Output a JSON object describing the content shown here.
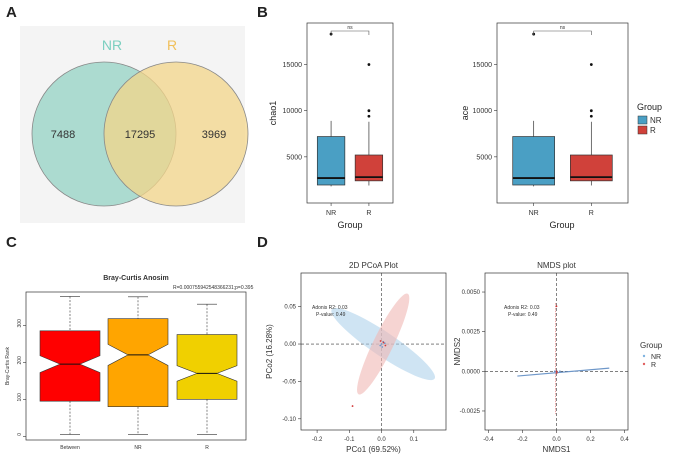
{
  "panels": {
    "a": "A",
    "b": "B",
    "c": "C",
    "d": "D"
  },
  "colors": {
    "nr_venn": "#9fd6c9",
    "r_venn": "#f3d58a",
    "overlap": "#d6d59b",
    "nr_box": "#4a9fc4",
    "r_box": "#d0413a",
    "anosim_between": "#ff0000",
    "anosim_nr": "#ffa500",
    "anosim_r": "#f0d000",
    "nr_ellipse": "#a8cdea",
    "r_ellipse": "#f0b8b4"
  },
  "chart_data": [
    {
      "id": "venn",
      "type": "venn",
      "sets": [
        "NR",
        "R"
      ],
      "values": {
        "NR_only": 7488,
        "both": 17295,
        "R_only": 3969
      }
    },
    {
      "id": "chao1",
      "type": "boxplot",
      "ylabel": "chao1",
      "xlabel": "Group",
      "categories": [
        "NR",
        "R"
      ],
      "ylim": [
        0,
        19500
      ],
      "yticks": [
        5000,
        10000,
        15000
      ],
      "significance": "ns",
      "boxes": [
        {
          "group": "NR",
          "min": 1800,
          "q1": 1950,
          "median": 2700,
          "q3": 7200,
          "max": 8900,
          "outliers": [
            18300
          ]
        },
        {
          "group": "R",
          "min": 1900,
          "q1": 2400,
          "median": 2800,
          "q3": 5200,
          "max": 8800,
          "outliers": [
            9400,
            10000,
            15000
          ]
        }
      ]
    },
    {
      "id": "ace",
      "type": "boxplot",
      "ylabel": "ace",
      "xlabel": "Group",
      "categories": [
        "NR",
        "R"
      ],
      "ylim": [
        0,
        19500
      ],
      "yticks": [
        5000,
        10000,
        15000
      ],
      "significance": "ns",
      "boxes": [
        {
          "group": "NR",
          "min": 1800,
          "q1": 1950,
          "median": 2700,
          "q3": 7200,
          "max": 8900,
          "outliers": [
            18300
          ]
        },
        {
          "group": "R",
          "min": 1900,
          "q1": 2400,
          "median": 2800,
          "q3": 5200,
          "max": 8800,
          "outliers": [
            9400,
            10000,
            15000
          ]
        }
      ]
    },
    {
      "id": "anosim",
      "type": "boxplot",
      "title": "Bray-Curtis Anosim",
      "subtitle": "R=0.000755942548366231;p=0.395",
      "ylabel": "Bray-Curtis Rank",
      "xlabel": "",
      "categories": [
        "Between",
        "NR",
        "R"
      ],
      "ylim": [
        -10,
        390
      ],
      "yticks": [
        0,
        100,
        200,
        300
      ],
      "boxes": [
        {
          "group": "Between",
          "min": 5,
          "q1": 95,
          "median": 195,
          "q3": 285,
          "max": 378
        },
        {
          "group": "NR",
          "min": 5,
          "q1": 80,
          "median": 220,
          "q3": 318,
          "max": 377
        },
        {
          "group": "R",
          "min": 5,
          "q1": 100,
          "median": 170,
          "q3": 275,
          "max": 357
        }
      ]
    },
    {
      "id": "pcoa",
      "type": "scatter",
      "title": "2D PCoA Plot",
      "xlabel": "PCo1 (69.52%)",
      "ylabel": "PCo2 (16.28%)",
      "xlim": [
        -0.25,
        0.2
      ],
      "ylim": [
        -0.115,
        0.095
      ],
      "xticks": [
        -0.2,
        -0.1,
        0.0,
        0.1
      ],
      "yticks": [
        -0.1,
        -0.05,
        0.0,
        0.05
      ],
      "annotation": [
        "Adonis R2: 0.03",
        "P-value: 0.49"
      ],
      "series": [
        {
          "name": "NR",
          "points": [
            [
              0.0,
              0.0
            ],
            [
              0.005,
              0.003
            ],
            [
              -0.004,
              -0.002
            ],
            [
              0.01,
              0.001
            ],
            [
              0.002,
              -0.004
            ]
          ]
        },
        {
          "name": "R",
          "points": [
            [
              -0.09,
              -0.083
            ],
            [
              0.006,
              0.002
            ],
            [
              0.012,
              -0.002
            ],
            [
              -0.003,
              0.004
            ]
          ]
        }
      ]
    },
    {
      "id": "nmds",
      "type": "scatter",
      "title": "NMDS plot",
      "xlabel": "NMDS1",
      "ylabel": "NMDS2",
      "xlim": [
        -0.42,
        0.42
      ],
      "ylim": [
        -0.0037,
        0.0062
      ],
      "xticks": [
        -0.4,
        -0.2,
        0.0,
        0.2,
        0.4
      ],
      "yticks": [
        -0.0025,
        0.0,
        0.0025,
        0.005
      ],
      "annotation": [
        "Adonis R2: 0.03",
        "P-value: 0.49"
      ],
      "series": [
        {
          "name": "NR",
          "points": [
            [
              0.0,
              0.0
            ],
            [
              0.02,
              0.0
            ],
            [
              -0.01,
              0.0
            ]
          ]
        },
        {
          "name": "R",
          "points": [
            [
              0.0,
              0.0041
            ],
            [
              0.0,
              0.0
            ],
            [
              0.002,
              -0.0001
            ]
          ]
        }
      ]
    }
  ],
  "legend_b": {
    "title": "Group",
    "items": [
      "NR",
      "R"
    ]
  },
  "legend_d": {
    "title": "Group",
    "items": [
      "NR",
      "R"
    ]
  }
}
